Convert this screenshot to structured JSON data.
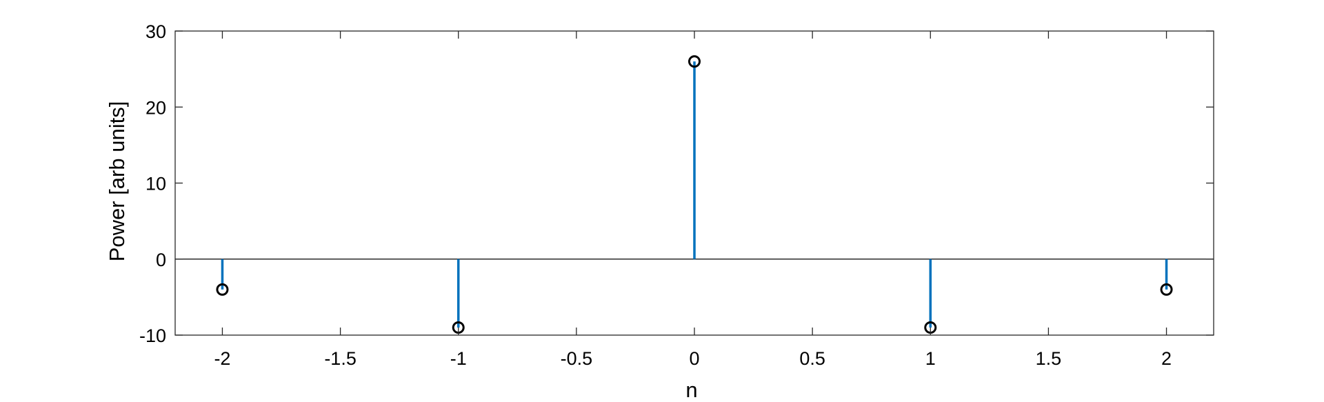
{
  "chart_data": {
    "type": "stem",
    "xlabel": "n",
    "ylabel": "Power [arb units]",
    "xlim": [
      -2.2,
      2.2
    ],
    "ylim": [
      -10,
      30
    ],
    "x_ticks": [
      -2,
      -1.5,
      -1,
      -0.5,
      0,
      0.5,
      1,
      1.5,
      2
    ],
    "x_tick_labels": [
      "-2",
      "-1.5",
      "-1",
      "-0.5",
      "0",
      "0.5",
      "1",
      "1.5",
      "2"
    ],
    "y_ticks": [
      -10,
      0,
      10,
      20,
      30
    ],
    "y_tick_labels": [
      "-10",
      "0",
      "10",
      "20",
      "30"
    ],
    "baseline": 0,
    "grid": false,
    "x": [
      -2,
      -1,
      0,
      1,
      2
    ],
    "y": [
      -4,
      -9,
      26,
      -9,
      -4
    ],
    "colors": {
      "stem": "#0072BD",
      "marker": "#000000",
      "axes": "#262626"
    }
  }
}
